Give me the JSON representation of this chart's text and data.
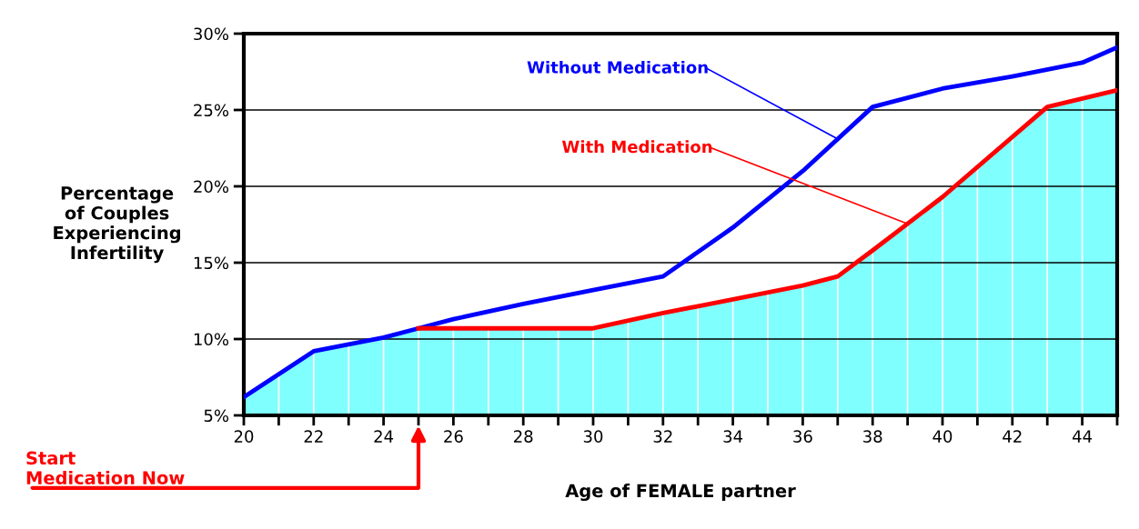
{
  "chart_data": {
    "type": "line",
    "ylabel": "Percentage\nof Couples\nExperiencing\nInfertility",
    "xlabel": "Age of FEMALE partner",
    "xlim": [
      20,
      45
    ],
    "xticks": [
      20,
      {
        "value": 21,
        "label": null
      },
      22,
      {
        "value": 23,
        "label": null
      },
      24,
      {
        "value": 25,
        "label": null
      },
      26,
      {
        "value": 27,
        "label": null
      },
      28,
      {
        "value": 29,
        "label": null
      },
      30,
      {
        "value": 31,
        "label": null
      },
      32,
      {
        "value": 33,
        "label": null
      },
      34,
      {
        "value": 35,
        "label": null
      },
      36,
      {
        "value": 37,
        "label": null
      },
      38,
      {
        "value": 39,
        "label": null
      },
      40,
      {
        "value": 41,
        "label": null
      },
      42,
      {
        "value": 43,
        "label": null
      },
      44,
      {
        "value": 45,
        "label": null
      }
    ],
    "ylim": [
      5,
      30
    ],
    "yticks": [
      {
        "value": 5,
        "label": "5%"
      },
      {
        "value": 10,
        "label": "10%"
      },
      {
        "value": 15,
        "label": "15%"
      },
      {
        "value": 20,
        "label": "20%"
      },
      {
        "value": 25,
        "label": "25%"
      },
      {
        "value": 30,
        "label": "30%"
      }
    ],
    "grid": true,
    "legend": false,
    "series": [
      {
        "type": "area",
        "color": "#80ffff",
        "x": [
          20,
          22,
          24,
          25,
          30,
          32,
          34,
          36,
          37,
          38,
          40,
          43,
          45
        ],
        "values": [
          6.2,
          9.2,
          10.1,
          10.7,
          10.7,
          11.7,
          12.6,
          13.5,
          14.1,
          15.8,
          19.3,
          25.2,
          26.3
        ]
      },
      {
        "name": "Without Medication",
        "color": "#0000ff",
        "x": [
          20,
          22,
          24,
          25,
          26,
          28,
          30,
          32,
          34,
          36,
          38,
          40,
          42,
          44,
          45
        ],
        "values": [
          6.2,
          9.2,
          10.1,
          10.7,
          11.3,
          12.3,
          13.2,
          14.1,
          17.3,
          21.0,
          25.2,
          26.4,
          27.2,
          28.1,
          29.1
        ]
      },
      {
        "name": "With Medication",
        "color": "#ff0000",
        "x": [
          25,
          30,
          32,
          34,
          36,
          37,
          38,
          40,
          43,
          45
        ],
        "values": [
          10.7,
          10.7,
          11.7,
          12.6,
          13.5,
          14.1,
          15.8,
          19.3,
          25.2,
          26.3
        ]
      }
    ],
    "annotations": [
      "Start\nMedication Now"
    ]
  }
}
